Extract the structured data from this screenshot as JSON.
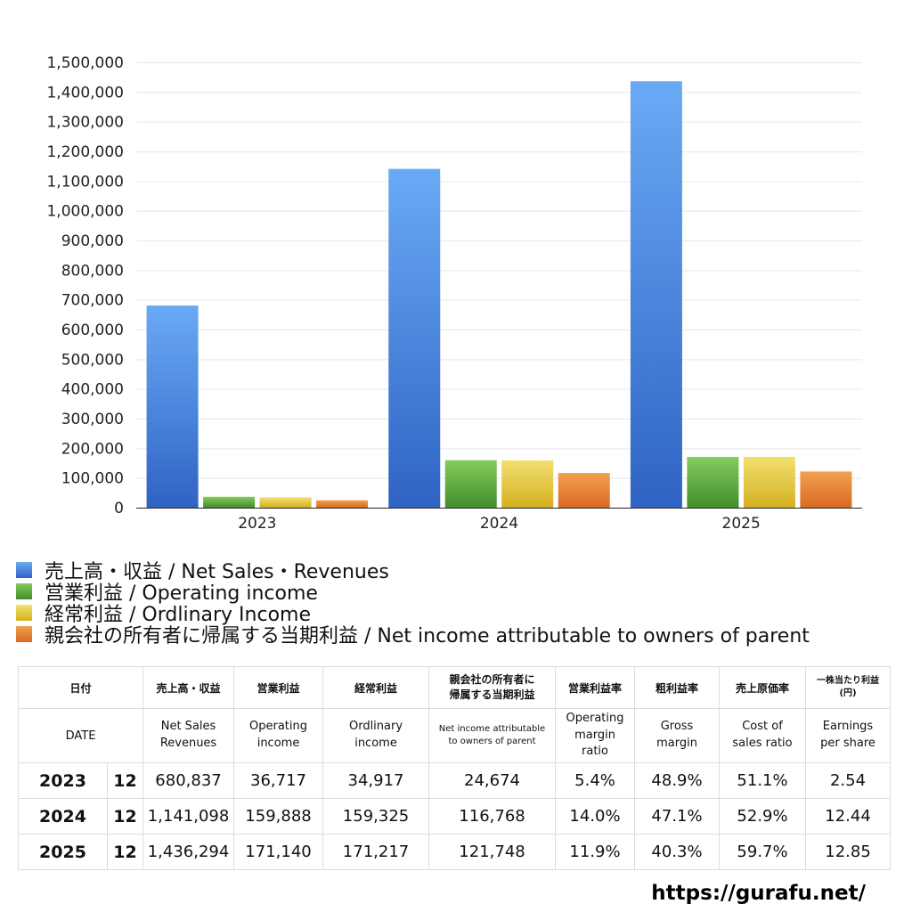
{
  "chart_data": {
    "type": "bar",
    "categories": [
      "2023",
      "2024",
      "2025"
    ],
    "ylim": [
      0,
      1500000
    ],
    "ytick_step": 100000,
    "grid": true,
    "legend_position": "bottom-left",
    "series": [
      {
        "name": "売上高・収益 / Net Sales・Revenues",
        "values": [
          680837,
          1141098,
          1436294
        ],
        "color": "#4a86e0",
        "color_top": "#6aaaf5",
        "color_bottom": "#2f63c4"
      },
      {
        "name": "営業利益 / Operating income",
        "values": [
          36717,
          159888,
          171140
        ],
        "color": "#5aa83c",
        "color_top": "#86cc5e",
        "color_bottom": "#3f8f2b"
      },
      {
        "name": "経常利益 / Ordlinary Income",
        "values": [
          34917,
          159325,
          171217
        ],
        "color": "#e0c030",
        "color_top": "#f2e070",
        "color_bottom": "#d4b020"
      },
      {
        "name": "親会社の所有者に帰属する当期利益 / Net income attributable to owners of parent",
        "values": [
          24674,
          116768,
          121748
        ],
        "color": "#e07a2c",
        "color_top": "#f2a050",
        "color_bottom": "#d86a20"
      }
    ]
  },
  "table": {
    "header_jp": [
      "日付",
      "",
      "売上高・収益",
      "営業利益",
      "経常利益",
      "親会社の所有者に\n帰属する当期利益",
      "営業利益率",
      "粗利益率",
      "売上原価率",
      "一株当たり利益\n(円)"
    ],
    "header_en": [
      "DATE",
      "",
      "Net Sales\nRevenues",
      "Operating\nincome",
      "Ordlinary\nincome",
      "Net income attributable\nto owners of parent",
      "Operating\nmargin\nratio",
      "Gross\nmargin",
      "Cost of\nsales ratio",
      "Earnings\nper share"
    ],
    "rows": [
      {
        "year": "2023",
        "month": "12",
        "values": [
          "680,837",
          "36,717",
          "34,917",
          "24,674",
          "5.4%",
          "48.9%",
          "51.1%",
          "2.54"
        ]
      },
      {
        "year": "2024",
        "month": "12",
        "values": [
          "1,141,098",
          "159,888",
          "159,325",
          "116,768",
          "14.0%",
          "47.1%",
          "52.9%",
          "12.44"
        ]
      },
      {
        "year": "2025",
        "month": "12",
        "values": [
          "1,436,294",
          "171,140",
          "171,217",
          "121,748",
          "11.9%",
          "40.3%",
          "59.7%",
          "12.85"
        ]
      }
    ]
  },
  "footer": {
    "url": "https://gurafu.net/"
  }
}
